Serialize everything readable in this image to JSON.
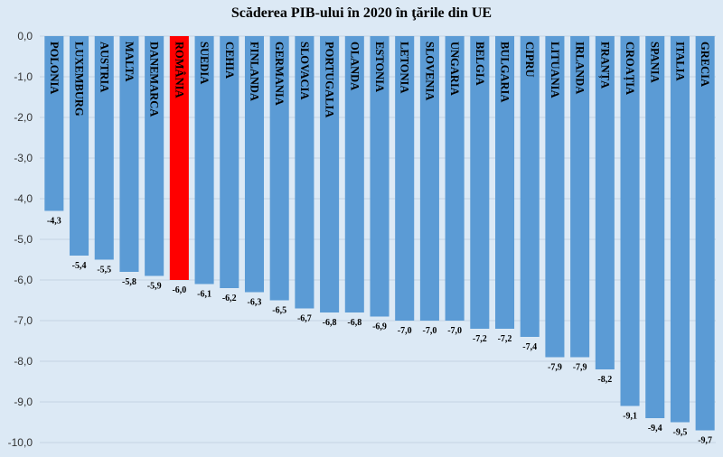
{
  "chart_data": {
    "type": "bar",
    "title": "Scăderea PIB-ului în 2020 în ţările din UE",
    "xlabel": "",
    "ylabel": "",
    "ylim": [
      -10,
      0
    ],
    "yticks": [
      0,
      -1,
      -2,
      -3,
      -4,
      -5,
      -6,
      -7,
      -8,
      -9,
      -10
    ],
    "ytick_labels": [
      "0,0",
      "-1,0",
      "-2,0",
      "-3,0",
      "-4,0",
      "-5,0",
      "-6,0",
      "-7,0",
      "-8,0",
      "-9,0",
      "-10,0"
    ],
    "grid": true,
    "categories": [
      "POLONIA",
      "LUXEMBURG",
      "AUSTRIA",
      "MALTA",
      "DANEMARCA",
      "ROMÂNIA",
      "SUEDIA",
      "CEHIA",
      "FINLANDA",
      "GERMANIA",
      "SLOVACIA",
      "PORTUGALIA",
      "OLANDA",
      "ESTONIA",
      "LETONIA",
      "SLOVENIA",
      "UNGARIA",
      "BELGIA",
      "BULGARIA",
      "CIPRU",
      "LITUANIA",
      "IRLANDA",
      "FRANȚA",
      "CROAȚIA",
      "SPANIA",
      "ITALIA",
      "GRECIA"
    ],
    "values": [
      -4.3,
      -5.4,
      -5.5,
      -5.8,
      -5.9,
      -6.0,
      -6.1,
      -6.2,
      -6.3,
      -6.5,
      -6.7,
      -6.8,
      -6.8,
      -6.9,
      -7.0,
      -7.0,
      -7.0,
      -7.2,
      -7.2,
      -7.4,
      -7.9,
      -7.9,
      -8.2,
      -9.1,
      -9.4,
      -9.5,
      -9.7
    ],
    "value_labels": [
      "-4,3",
      "-5,4",
      "-5,5",
      "-5,8",
      "-5,9",
      "-6,0",
      "-6,1",
      "-6,2",
      "-6,3",
      "-6,5",
      "-6,7",
      "-6,8",
      "-6,8",
      "-6,9",
      "-7,0",
      "-7,0",
      "-7,0",
      "-7,2",
      "-7,2",
      "-7,4",
      "-7,9",
      "-7,9",
      "-8,2",
      "-9,1",
      "-9,4",
      "-9,5",
      "-9,7"
    ],
    "colors": {
      "bar": "#5b9bd5",
      "highlight": "#ff0000",
      "highlight_label": "#ff0000",
      "grid": "#c3d3e3",
      "background": "#dce9f5"
    },
    "highlight_category": "ROMÂNIA"
  }
}
